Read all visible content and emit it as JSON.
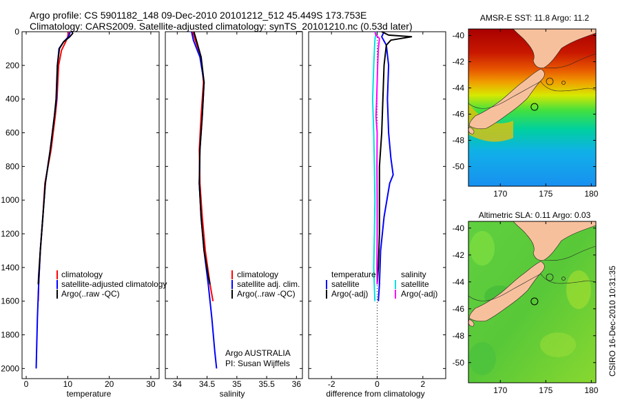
{
  "header": {
    "line1": "Argo profile: CS 5901182_148 09-Dec-2010 20101212_512 45.449S 173.753E",
    "line2": "Climatology: CARS2009. Satellite-adjusted climatology: synTS_20101210.nc (0.53d later)"
  },
  "credit": "CSIRO 16-Dec-2010 10:31:35",
  "colors": {
    "climatology": "#ff0000",
    "satellite": "#0000ff",
    "argo": "#000000",
    "sal_satellite": "#00e0e0",
    "sal_argo": "#ff00ff",
    "land": "#f7c09c"
  },
  "chart_data": [
    {
      "type": "line",
      "panel": "temperature",
      "xlabel": "temperature",
      "xlim": [
        -1,
        32
      ],
      "ylim": [
        0,
        2060
      ],
      "y_reversed": true,
      "xticks": [
        0,
        10,
        20,
        30
      ],
      "yticks": [
        0,
        200,
        400,
        600,
        800,
        1000,
        1200,
        1400,
        1600,
        1800,
        2000
      ],
      "legend": [
        "climatology",
        "satellite-adjusted climatology",
        "Argo(..raw -QC)"
      ],
      "legend_placement": "lower-right",
      "series": [
        {
          "name": "climatology",
          "color": "#ff0000",
          "points": [
            [
              10.2,
              0
            ],
            [
              10.0,
              30
            ],
            [
              9.5,
              60
            ],
            [
              8.5,
              110
            ],
            [
              7.8,
              200
            ],
            [
              7.4,
              400
            ],
            [
              7.0,
              500
            ],
            [
              6.0,
              700
            ],
            [
              4.5,
              900
            ],
            [
              4.0,
              1100
            ],
            [
              3.4,
              1300
            ],
            [
              3.0,
              1500
            ],
            [
              2.9,
              1600
            ]
          ]
        },
        {
          "name": "satellite-adjusted climatology",
          "color": "#0000ff",
          "points": [
            [
              10.6,
              0
            ],
            [
              10.2,
              30
            ],
            [
              9.0,
              60
            ],
            [
              7.9,
              100
            ],
            [
              7.5,
              200
            ],
            [
              7.3,
              400
            ],
            [
              6.8,
              500
            ],
            [
              5.8,
              700
            ],
            [
              4.6,
              900
            ],
            [
              4.0,
              1100
            ],
            [
              3.4,
              1300
            ],
            [
              3.0,
              1500
            ],
            [
              2.7,
              1700
            ],
            [
              2.5,
              1900
            ],
            [
              2.4,
              2000
            ]
          ]
        },
        {
          "name": "Argo(..raw -QC)",
          "color": "#000000",
          "points": [
            [
              11.0,
              0
            ],
            [
              11.2,
              10
            ],
            [
              10.5,
              30
            ],
            [
              9.0,
              60
            ],
            [
              8.0,
              100
            ],
            [
              7.5,
              200
            ],
            [
              7.2,
              400
            ],
            [
              6.8,
              500
            ],
            [
              5.8,
              700
            ],
            [
              4.6,
              900
            ],
            [
              4.0,
              1100
            ],
            [
              3.4,
              1300
            ],
            [
              3.0,
              1450
            ],
            [
              2.9,
              1500
            ]
          ]
        }
      ]
    },
    {
      "type": "line",
      "panel": "salinity",
      "xlabel": "salinity",
      "xlim": [
        33.8,
        36.1
      ],
      "ylim": [
        0,
        2060
      ],
      "y_reversed": true,
      "xticks": [
        34,
        34.5,
        35,
        35.5,
        36
      ],
      "legend": [
        "climatology",
        "satellite adj. clim.",
        "Argo(..raw -QC)"
      ],
      "legend_placement": "lower-right",
      "annotation": [
        "Argo AUSTRALIA",
        "PI: Susan Wijffels"
      ],
      "series": [
        {
          "name": "climatology",
          "color": "#ff0000",
          "points": [
            [
              34.26,
              0
            ],
            [
              34.3,
              50
            ],
            [
              34.4,
              150
            ],
            [
              34.44,
              300
            ],
            [
              34.4,
              500
            ],
            [
              34.37,
              700
            ],
            [
              34.38,
              900
            ],
            [
              34.42,
              1100
            ],
            [
              34.47,
              1300
            ],
            [
              34.55,
              1500
            ],
            [
              34.6,
              1600
            ]
          ]
        },
        {
          "name": "satellite adj. clim.",
          "color": "#0000ff",
          "points": [
            [
              34.24,
              0
            ],
            [
              34.27,
              50
            ],
            [
              34.38,
              150
            ],
            [
              34.45,
              300
            ],
            [
              34.42,
              500
            ],
            [
              34.38,
              700
            ],
            [
              34.37,
              900
            ],
            [
              34.4,
              1100
            ],
            [
              34.45,
              1300
            ],
            [
              34.52,
              1500
            ],
            [
              34.58,
              1700
            ],
            [
              34.63,
              1900
            ],
            [
              34.66,
              2000
            ]
          ]
        },
        {
          "name": "Argo(..raw -QC)",
          "color": "#000000",
          "points": [
            [
              34.28,
              0
            ],
            [
              34.32,
              50
            ],
            [
              34.4,
              150
            ],
            [
              34.45,
              300
            ],
            [
              34.42,
              500
            ],
            [
              34.38,
              700
            ],
            [
              34.37,
              900
            ],
            [
              34.4,
              1100
            ],
            [
              34.45,
              1300
            ],
            [
              34.52,
              1450
            ],
            [
              34.55,
              1500
            ]
          ]
        }
      ]
    },
    {
      "type": "line",
      "panel": "difference",
      "xlabel": "difference from climatology",
      "xlim": [
        -3.0,
        3.0
      ],
      "ylim": [
        0,
        2060
      ],
      "y_reversed": true,
      "xticks": [
        -2,
        0,
        2
      ],
      "legend_temperature_heading": "temperature",
      "legend_salinity_heading": "salinity",
      "legend_temperature": [
        "satellite",
        "Argo(-adj)"
      ],
      "legend_salinity": [
        "satellite",
        "Argo(-adj)"
      ],
      "legend_placement": "lower",
      "series": [
        {
          "name": "temperature satellite",
          "color": "#0000ff",
          "points": [
            [
              0.3,
              0
            ],
            [
              0.2,
              30
            ],
            [
              0.4,
              80
            ],
            [
              0.5,
              200
            ],
            [
              0.45,
              400
            ],
            [
              0.5,
              600
            ],
            [
              0.6,
              750
            ],
            [
              0.7,
              850
            ],
            [
              0.55,
              900
            ],
            [
              0.3,
              1100
            ],
            [
              0.15,
              1300
            ],
            [
              0.1,
              1500
            ],
            [
              0.05,
              1600
            ]
          ]
        },
        {
          "name": "temperature Argo(-adj)",
          "color": "#000000",
          "points": [
            [
              0.2,
              0
            ],
            [
              0.5,
              20
            ],
            [
              1.5,
              30
            ],
            [
              0.6,
              50
            ],
            [
              0.4,
              80
            ],
            [
              0.3,
              200
            ],
            [
              0.25,
              400
            ],
            [
              0.2,
              600
            ],
            [
              0.1,
              800
            ],
            [
              0.1,
              1000
            ],
            [
              0.1,
              1200
            ],
            [
              0.05,
              1400
            ],
            [
              0.0,
              1500
            ]
          ]
        },
        {
          "name": "salinity satellite",
          "color": "#00e0e0",
          "points": [
            [
              -0.05,
              0
            ],
            [
              -0.1,
              50
            ],
            [
              -0.15,
              200
            ],
            [
              -0.2,
              400
            ],
            [
              -0.15,
              600
            ],
            [
              -0.12,
              800
            ],
            [
              -0.1,
              1000
            ],
            [
              -0.12,
              1200
            ],
            [
              -0.15,
              1400
            ],
            [
              -0.1,
              1600
            ]
          ]
        },
        {
          "name": "salinity Argo(-adj)",
          "color": "#ff00ff",
          "points": [
            [
              -0.1,
              0
            ],
            [
              -0.05,
              20
            ],
            [
              0.1,
              40
            ],
            [
              0.05,
              100
            ],
            [
              0.02,
              200
            ],
            [
              -0.02,
              400
            ],
            [
              -0.05,
              500
            ],
            [
              0.0,
              600
            ],
            [
              -0.01,
              800
            ],
            [
              0.0,
              1000
            ],
            [
              0.0,
              1200
            ],
            [
              -0.01,
              1400
            ],
            [
              0.0,
              1500
            ]
          ]
        }
      ]
    },
    {
      "type": "heatmap",
      "panel": "sst-map",
      "title": "AMSR-E SST: 11.8  Argo: 11.2",
      "xlim": [
        166.5,
        180.5
      ],
      "ylim": [
        -51.5,
        -39.5
      ],
      "xticks": [
        170,
        175,
        180
      ],
      "yticks": [
        -40,
        -42,
        -44,
        -46,
        -48,
        -50
      ],
      "profile_location": [
        173.753,
        -45.449
      ]
    },
    {
      "type": "heatmap",
      "panel": "sla-map",
      "title": "Altimetric SLA: 0.11  Argo: 0.03",
      "xlim": [
        166.5,
        180.5
      ],
      "ylim": [
        -51.5,
        -39.5
      ],
      "xticks": [
        170,
        175,
        180
      ],
      "yticks": [
        -40,
        -42,
        -44,
        -46,
        -48,
        -50
      ],
      "profile_location": [
        173.753,
        -45.449
      ]
    }
  ]
}
